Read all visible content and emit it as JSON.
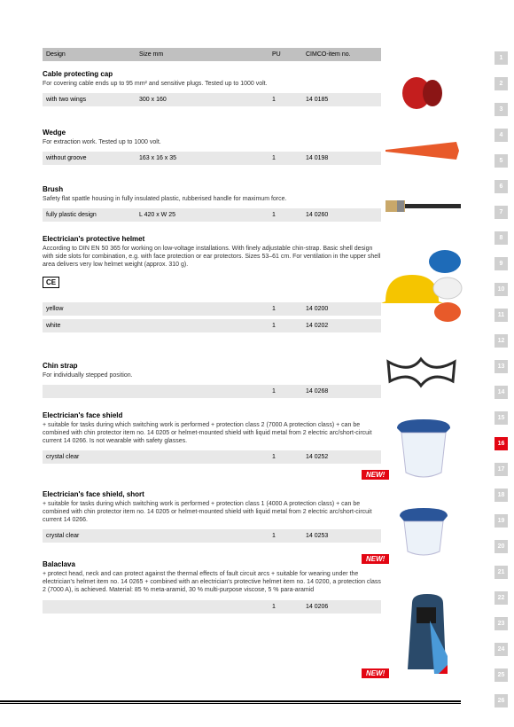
{
  "headers": {
    "design": "Design",
    "size": "Size mm",
    "pu": "PU",
    "item": "CIMCO-item no."
  },
  "sections": [
    {
      "title": "Cable protecting cap",
      "desc": "For covering cable ends up to 95 mm² and sensitive plugs. Tested up to 1000 volt.",
      "rows": [
        {
          "design": "with two wings",
          "size": "300 x 160",
          "pu": "1",
          "item": "14 0185"
        }
      ]
    },
    {
      "title": "Wedge",
      "desc": "For extraction work. Tested up to 1000 volt.",
      "rows": [
        {
          "design": "without groove",
          "size": "163 x 16 x 35",
          "pu": "1",
          "item": "14 0198"
        }
      ]
    },
    {
      "title": "Brush",
      "desc": "Safety flat spattle housing in fully insulated plastic, rubberised handle for maximum force.",
      "rows": [
        {
          "design": "fully plastic design",
          "size": "L 420 x W 25",
          "pu": "1",
          "item": "14 0260"
        }
      ]
    },
    {
      "title": "Electrician's protective helmet",
      "desc": "According to DIN EN 50 365 for working on low-voltage installations. With finely adjustable chin-strap. Basic shell design with side slots for combination, e.g. with face protection or ear protectors.\nSizes 53–61 cm.\nFor ventilation in the upper shell area delivers very low helmet weight (approx. 310 g).",
      "rows": [
        {
          "design": "yellow",
          "size": "",
          "pu": "1",
          "item": "14 0200"
        },
        {
          "design": "white",
          "size": "",
          "pu": "1",
          "item": "14 0202"
        }
      ],
      "ce": true
    },
    {
      "title": "Chin strap",
      "desc": "For individually stepped position.",
      "rows": [
        {
          "design": "",
          "size": "",
          "pu": "1",
          "item": "14 0268"
        }
      ]
    },
    {
      "title": "Electrician's face shield",
      "desc": "+ suitable for tasks during which switching work is performed\n+ protection class 2 (7000 A protection class)\n+ can be combined with chin protector item no. 14 0205 or helmet-mounted shield with liquid metal from 2 electric arc/short-circuit current 14 0266. Is not wearable with safety glasses.",
      "rows": [
        {
          "design": "crystal clear",
          "size": "",
          "pu": "1",
          "item": "14 0252"
        }
      ],
      "new": true
    },
    {
      "title": "Electrician's face shield, short",
      "desc": "+ suitable for tasks during which switching work is performed\n+ protection class 1 (4000 A protection class)\n+ can be combined with chin protector item no. 14 0205 or helmet-mounted shield with liquid metal from 2 electric arc/short-circuit current 14 0266.",
      "rows": [
        {
          "design": "crystal clear",
          "size": "",
          "pu": "1",
          "item": "14 0253"
        }
      ],
      "new": true
    },
    {
      "title": "Balaclava",
      "desc": "+ protect head, neck and can protect against the thermal effects of fault circuit arcs\n+ suitable for wearing under the electrician's helmet item no. 14 0265\n+ combined with an electrician's protective helmet item no. 14 0200, a protection class 2 (7000 A), is achieved.\nMaterial: 85 % meta-aramid, 30 % multi-purpose viscose, 5 % para-aramid",
      "rows": [
        {
          "design": "",
          "size": "",
          "pu": "1",
          "item": "14 0206"
        }
      ],
      "new": true
    }
  ],
  "navTabs": [
    1,
    2,
    3,
    4,
    5,
    6,
    7,
    8,
    9,
    10,
    11,
    12,
    13,
    14,
    15,
    16,
    17,
    18,
    19,
    20,
    21,
    22,
    23,
    24,
    25,
    26
  ],
  "activeTab": 16
}
